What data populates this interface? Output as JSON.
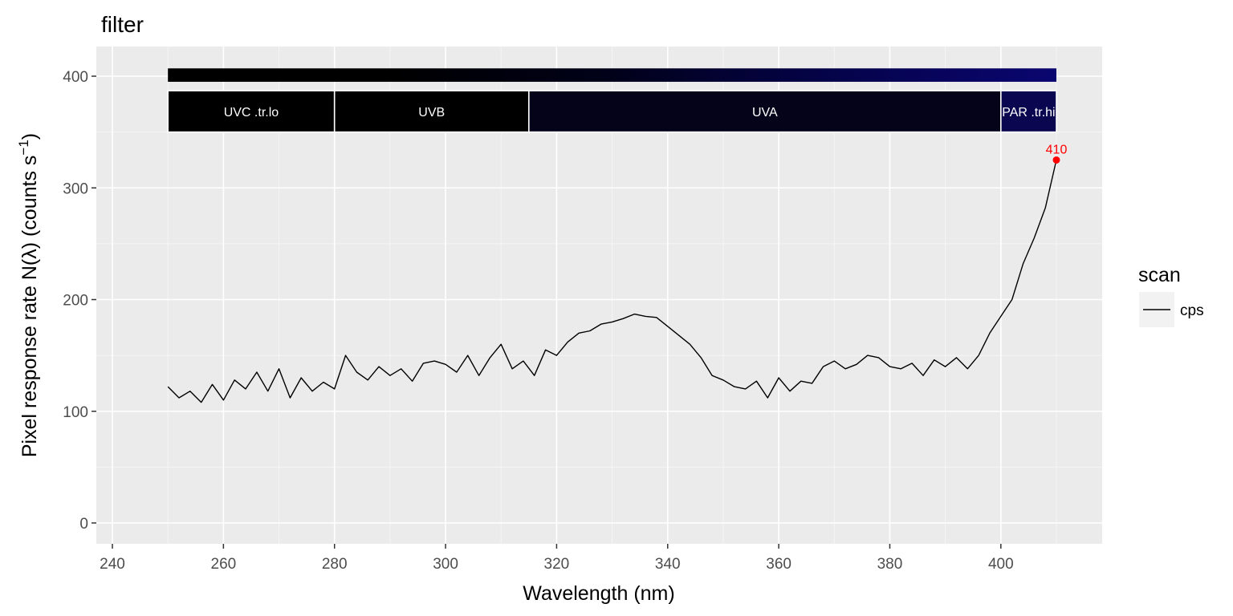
{
  "chart_data": {
    "type": "line",
    "title": "filter",
    "xlabel": "Wavelength (nm)",
    "ylabel": {
      "main": "Pixel  response  rate  N(",
      "lambda": "λ",
      "close": ")  (counts  s",
      "sup": "−1",
      "end": ")"
    },
    "xlim": [
      240,
      410
    ],
    "ylim": [
      0,
      410
    ],
    "xticks": [
      240,
      260,
      280,
      300,
      320,
      340,
      360,
      380,
      400
    ],
    "yticks": [
      0,
      100,
      200,
      300,
      400
    ],
    "grid": true,
    "background": "#ebebeb",
    "legend": {
      "title": "scan",
      "position": "right",
      "entries": [
        {
          "label": "cps",
          "color": "#000000"
        }
      ]
    },
    "wavebands": [
      {
        "label": "UVC .tr.lo",
        "from": 250,
        "to": 280,
        "color": "#000000"
      },
      {
        "label": "UVB",
        "from": 280,
        "to": 315,
        "color": "#000000"
      },
      {
        "label": "UVA",
        "from": 315,
        "to": 400,
        "color": "#05031a"
      },
      {
        "label": "PAR .tr.hi",
        "from": 400,
        "to": 410,
        "color": "#0a0650"
      }
    ],
    "spectrum_bar": {
      "from": 250,
      "to": 410,
      "colors": [
        "#000000",
        "#000000",
        "#01011a",
        "#05034a",
        "#0a0670"
      ]
    },
    "peak": {
      "x": 410,
      "y": 325,
      "label": "410",
      "color": "#ff0000"
    },
    "series": [
      {
        "name": "cps",
        "color": "#000000",
        "x": [
          250,
          252,
          254,
          256,
          258,
          260,
          262,
          264,
          266,
          268,
          270,
          272,
          274,
          276,
          278,
          280,
          282,
          284,
          286,
          288,
          290,
          292,
          294,
          296,
          298,
          300,
          302,
          304,
          306,
          308,
          310,
          312,
          314,
          316,
          318,
          320,
          322,
          324,
          326,
          328,
          330,
          332,
          334,
          336,
          338,
          340,
          342,
          344,
          346,
          348,
          350,
          352,
          354,
          356,
          358,
          360,
          362,
          364,
          366,
          368,
          370,
          372,
          374,
          376,
          378,
          380,
          382,
          384,
          386,
          388,
          390,
          392,
          394,
          396,
          398,
          400,
          402,
          404,
          406,
          408,
          410
        ],
        "y": [
          122,
          112,
          118,
          108,
          124,
          110,
          128,
          120,
          135,
          118,
          138,
          112,
          130,
          118,
          126,
          120,
          150,
          135,
          128,
          140,
          132,
          138,
          127,
          143,
          145,
          142,
          135,
          150,
          132,
          148,
          160,
          138,
          145,
          132,
          155,
          150,
          162,
          170,
          172,
          178,
          180,
          183,
          187,
          185,
          184,
          176,
          168,
          160,
          148,
          132,
          128,
          122,
          120,
          127,
          112,
          130,
          118,
          127,
          125,
          140,
          145,
          138,
          142,
          150,
          148,
          140,
          138,
          143,
          132,
          146,
          140,
          148,
          138,
          150,
          170,
          185,
          200,
          232,
          255,
          282,
          325
        ]
      }
    ]
  }
}
